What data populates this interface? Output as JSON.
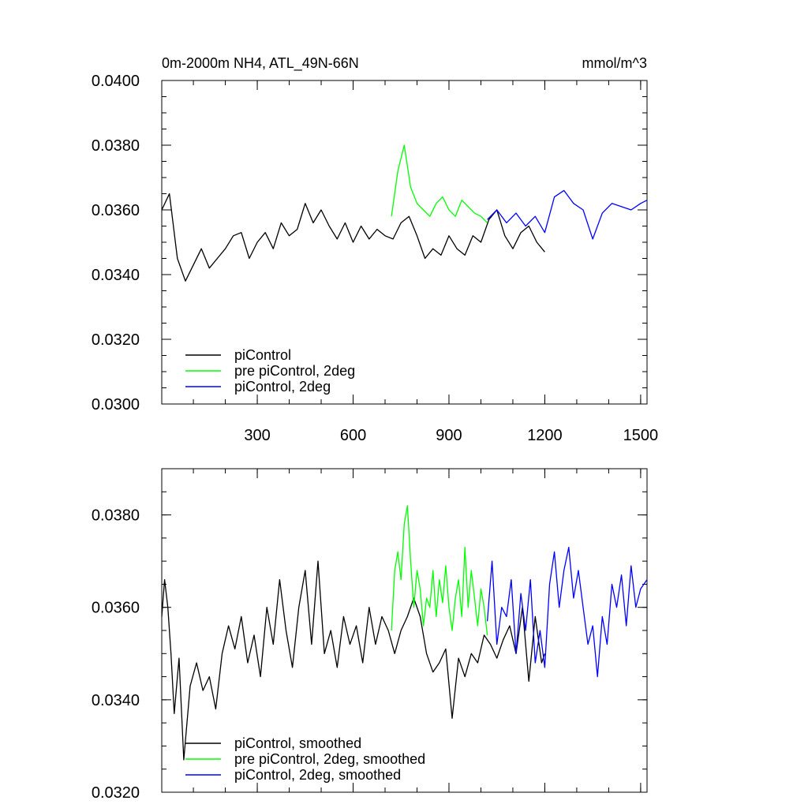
{
  "chart_data": [
    {
      "type": "line",
      "title": "0m-2000m NH4, ATL_49N-66N",
      "units": "mmol/m^3",
      "xlim": [
        1,
        1520
      ],
      "ylim": [
        0.03,
        0.04
      ],
      "x_ticks": [
        300,
        600,
        900,
        1200,
        1500
      ],
      "x_tick_labels": [
        "300",
        "600",
        "900",
        "1200",
        "1500"
      ],
      "y_ticks": [
        0.03,
        0.032,
        0.034,
        0.036,
        0.038,
        0.04
      ],
      "y_tick_labels": [
        "0.0300",
        "0.0320",
        "0.0340",
        "0.0360",
        "0.0380",
        "0.0400"
      ],
      "legend_position": "bottom-left",
      "series": [
        {
          "name": "piControl",
          "color": "#000000",
          "x": [
            1,
            25,
            50,
            75,
            100,
            125,
            150,
            175,
            200,
            225,
            250,
            275,
            300,
            325,
            350,
            375,
            400,
            425,
            450,
            475,
            500,
            525,
            550,
            575,
            600,
            625,
            650,
            675,
            700,
            725,
            750,
            775,
            800,
            825,
            850,
            875,
            900,
            925,
            950,
            975,
            1000,
            1025,
            1050,
            1075,
            1100,
            1125,
            1150,
            1175,
            1200
          ],
          "values": [
            0.036,
            0.0365,
            0.0345,
            0.0338,
            0.0343,
            0.0348,
            0.0342,
            0.0345,
            0.0348,
            0.0352,
            0.0353,
            0.0345,
            0.035,
            0.0353,
            0.0348,
            0.0356,
            0.0352,
            0.0354,
            0.0362,
            0.0356,
            0.036,
            0.0355,
            0.0351,
            0.0356,
            0.035,
            0.0355,
            0.0351,
            0.0354,
            0.0352,
            0.0351,
            0.0356,
            0.0358,
            0.0352,
            0.0345,
            0.0348,
            0.0346,
            0.0352,
            0.0348,
            0.0346,
            0.0352,
            0.035,
            0.0357,
            0.036,
            0.0352,
            0.0348,
            0.0353,
            0.0355,
            0.035,
            0.0347
          ]
        },
        {
          "name": "pre piControl, 2deg",
          "color": "#00ff00",
          "x": [
            720,
            740,
            760,
            780,
            800,
            820,
            840,
            860,
            880,
            900,
            920,
            940,
            960,
            980,
            1000,
            1020
          ],
          "values": [
            0.0358,
            0.0372,
            0.038,
            0.0367,
            0.0362,
            0.036,
            0.0358,
            0.0362,
            0.0364,
            0.036,
            0.0358,
            0.0363,
            0.0361,
            0.0359,
            0.0358,
            0.0356
          ]
        },
        {
          "name": "piControl, 2deg",
          "color": "#0000ff",
          "x": [
            1020,
            1050,
            1080,
            1110,
            1140,
            1170,
            1200,
            1230,
            1260,
            1290,
            1320,
            1350,
            1380,
            1410,
            1440,
            1470,
            1500,
            1520
          ],
          "values": [
            0.0357,
            0.036,
            0.0356,
            0.0359,
            0.0355,
            0.0358,
            0.0353,
            0.0364,
            0.0366,
            0.0362,
            0.036,
            0.0351,
            0.0359,
            0.0362,
            0.0361,
            0.036,
            0.0362,
            0.0363
          ]
        }
      ]
    },
    {
      "type": "line",
      "xlim": [
        1,
        1520
      ],
      "ylim": [
        0.032,
        0.039
      ],
      "x_ticks": [
        300,
        600,
        900,
        1200,
        1500
      ],
      "y_ticks": [
        0.032,
        0.034,
        0.036,
        0.038
      ],
      "y_tick_labels": [
        "0.0320",
        "0.0340",
        "0.0360",
        "0.0380"
      ],
      "legend_position": "bottom-left",
      "series": [
        {
          "name": "piControl, smoothed",
          "color": "#000000",
          "x": [
            1,
            10,
            20,
            30,
            40,
            55,
            70,
            90,
            110,
            130,
            150,
            170,
            190,
            210,
            230,
            250,
            270,
            290,
            310,
            330,
            350,
            370,
            390,
            410,
            430,
            450,
            470,
            490,
            510,
            530,
            550,
            570,
            590,
            610,
            630,
            650,
            670,
            690,
            710,
            730,
            750,
            770,
            790,
            810,
            830,
            850,
            870,
            890,
            910,
            930,
            950,
            970,
            990,
            1010,
            1030,
            1050,
            1070,
            1090,
            1110,
            1130,
            1150,
            1170,
            1190,
            1200
          ],
          "values": [
            0.0358,
            0.0366,
            0.036,
            0.035,
            0.0337,
            0.0349,
            0.0327,
            0.0343,
            0.0348,
            0.0342,
            0.0345,
            0.0338,
            0.035,
            0.0356,
            0.0351,
            0.0358,
            0.0348,
            0.0354,
            0.0345,
            0.036,
            0.0352,
            0.0366,
            0.0355,
            0.0347,
            0.036,
            0.0368,
            0.0352,
            0.037,
            0.035,
            0.0355,
            0.0347,
            0.0358,
            0.0352,
            0.0356,
            0.0348,
            0.036,
            0.0352,
            0.0358,
            0.0355,
            0.035,
            0.0355,
            0.0358,
            0.0362,
            0.0358,
            0.035,
            0.0346,
            0.0348,
            0.0351,
            0.0336,
            0.0349,
            0.0345,
            0.035,
            0.0348,
            0.0354,
            0.0352,
            0.0349,
            0.0353,
            0.0356,
            0.035,
            0.036,
            0.0344,
            0.0358,
            0.0348,
            0.035
          ]
        },
        {
          "name": "pre piControl, 2deg, smoothed",
          "color": "#00ff00",
          "x": [
            720,
            730,
            740,
            750,
            760,
            770,
            780,
            790,
            800,
            810,
            820,
            830,
            840,
            850,
            860,
            870,
            880,
            890,
            900,
            910,
            920,
            930,
            940,
            950,
            960,
            970,
            980,
            990,
            1000,
            1010,
            1020
          ],
          "values": [
            0.0355,
            0.0368,
            0.0372,
            0.0366,
            0.0378,
            0.0382,
            0.037,
            0.036,
            0.0368,
            0.0364,
            0.0356,
            0.0362,
            0.036,
            0.0368,
            0.0358,
            0.0366,
            0.0361,
            0.0369,
            0.036,
            0.0355,
            0.0362,
            0.0366,
            0.0358,
            0.0373,
            0.036,
            0.0368,
            0.0362,
            0.0356,
            0.0364,
            0.036,
            0.0354
          ]
        },
        {
          "name": "piControl, 2deg, smoothed",
          "color": "#0000ff",
          "x": [
            1020,
            1035,
            1050,
            1065,
            1080,
            1095,
            1110,
            1125,
            1140,
            1155,
            1170,
            1185,
            1200,
            1215,
            1230,
            1245,
            1260,
            1275,
            1290,
            1305,
            1320,
            1335,
            1350,
            1365,
            1380,
            1395,
            1410,
            1425,
            1440,
            1455,
            1470,
            1485,
            1500,
            1520
          ],
          "values": [
            0.0357,
            0.037,
            0.0352,
            0.036,
            0.0358,
            0.0366,
            0.035,
            0.0363,
            0.0355,
            0.0366,
            0.0348,
            0.0355,
            0.0347,
            0.0365,
            0.0372,
            0.036,
            0.0368,
            0.0373,
            0.0362,
            0.0368,
            0.036,
            0.0352,
            0.0356,
            0.0345,
            0.0358,
            0.0352,
            0.0365,
            0.036,
            0.0367,
            0.0356,
            0.0369,
            0.036,
            0.0364,
            0.0366
          ]
        }
      ]
    }
  ]
}
